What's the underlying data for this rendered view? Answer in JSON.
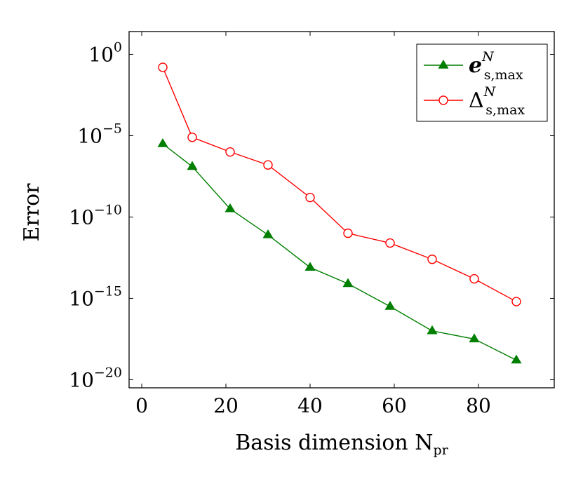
{
  "chart_data": {
    "type": "line",
    "xlabel": "Basis dimension N",
    "xlabel_subscript": "pr",
    "ylabel": "Error",
    "xlim": [
      -3,
      98
    ],
    "ylim_log10": [
      -20.5,
      1.4
    ],
    "y_scale": "log",
    "x_ticks": [
      0,
      20,
      40,
      60,
      80
    ],
    "y_ticks": [
      {
        "exp": 0,
        "base": "10",
        "sup": "0"
      },
      {
        "exp": -5,
        "base": "10",
        "sup": "−5"
      },
      {
        "exp": -10,
        "base": "10",
        "sup": "−10"
      },
      {
        "exp": -15,
        "base": "10",
        "sup": "−15"
      },
      {
        "exp": -20,
        "base": "10",
        "sup": "−20"
      }
    ],
    "grid": false,
    "legend_position": "top-right",
    "series": [
      {
        "name": "e",
        "name_sup": "N",
        "name_sub": "s,max",
        "color": "#007f00",
        "marker": "triangle",
        "x": [
          5,
          12,
          21,
          30,
          40,
          49,
          59,
          69,
          79,
          89
        ],
        "y_log10": [
          -5.5,
          -6.9,
          -9.5,
          -11.1,
          -13.1,
          -14.1,
          -15.5,
          -17.0,
          -17.5,
          -18.8
        ]
      },
      {
        "name": "Δ",
        "name_sup": "N",
        "name_sub": "s,max",
        "color": "#ff0000",
        "marker": "circle",
        "x": [
          5,
          12,
          21,
          30,
          40,
          49,
          59,
          69,
          79,
          89
        ],
        "y_log10": [
          -0.8,
          -5.1,
          -6.0,
          -6.8,
          -8.8,
          -11.0,
          -11.6,
          -12.6,
          -13.8,
          -15.2
        ]
      }
    ]
  }
}
